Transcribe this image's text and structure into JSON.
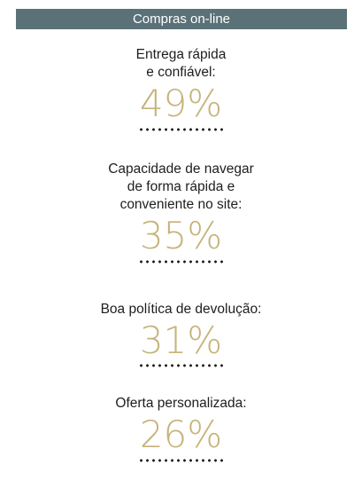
{
  "header": {
    "title": "Compras on-line"
  },
  "items": [
    {
      "label": "Entrega rápida\ne confiável:",
      "value": "49%"
    },
    {
      "label": "Capacidade de navegar\nde forma rápida e\nconveniente no site:",
      "value": "35%"
    },
    {
      "label": "Boa política de devolução:",
      "value": "31%"
    },
    {
      "label": "Oferta personalizada:",
      "value": "26%"
    }
  ],
  "colors": {
    "header_bg": "#5b7178",
    "value_gold": "#c6b37a"
  }
}
